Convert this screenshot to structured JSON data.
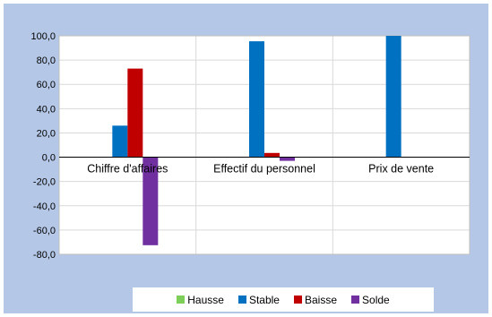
{
  "chart_data": {
    "type": "bar",
    "categories": [
      "Chiffre d'affaires",
      "Effectif du personnel",
      "Prix de vente"
    ],
    "series": [
      {
        "name": "Hausse",
        "color": "#7dcf5a",
        "values": [
          0.4,
          0.3,
          0.0
        ]
      },
      {
        "name": "Stable",
        "color": "#0070c0",
        "values": [
          26.0,
          95.5,
          100.0
        ]
      },
      {
        "name": "Baisse",
        "color": "#c00000",
        "values": [
          73.0,
          3.5,
          0.0
        ]
      },
      {
        "name": "Solde",
        "color": "#7030a0",
        "values": [
          -72.5,
          -3.0,
          0.0
        ]
      }
    ],
    "ylim": [
      -80,
      100
    ],
    "yticks": [
      "100,0",
      "80,0",
      "60,0",
      "40,0",
      "20,0",
      "0,0",
      "-20,0",
      "-40,0",
      "-60,0",
      "-80,0"
    ],
    "ytick_values": [
      100,
      80,
      60,
      40,
      20,
      0,
      -20,
      -40,
      -60,
      -80
    ],
    "grid": true,
    "legend_position": "bottom",
    "background_color": "#b4c7e7",
    "plot_color": "#ffffff"
  }
}
